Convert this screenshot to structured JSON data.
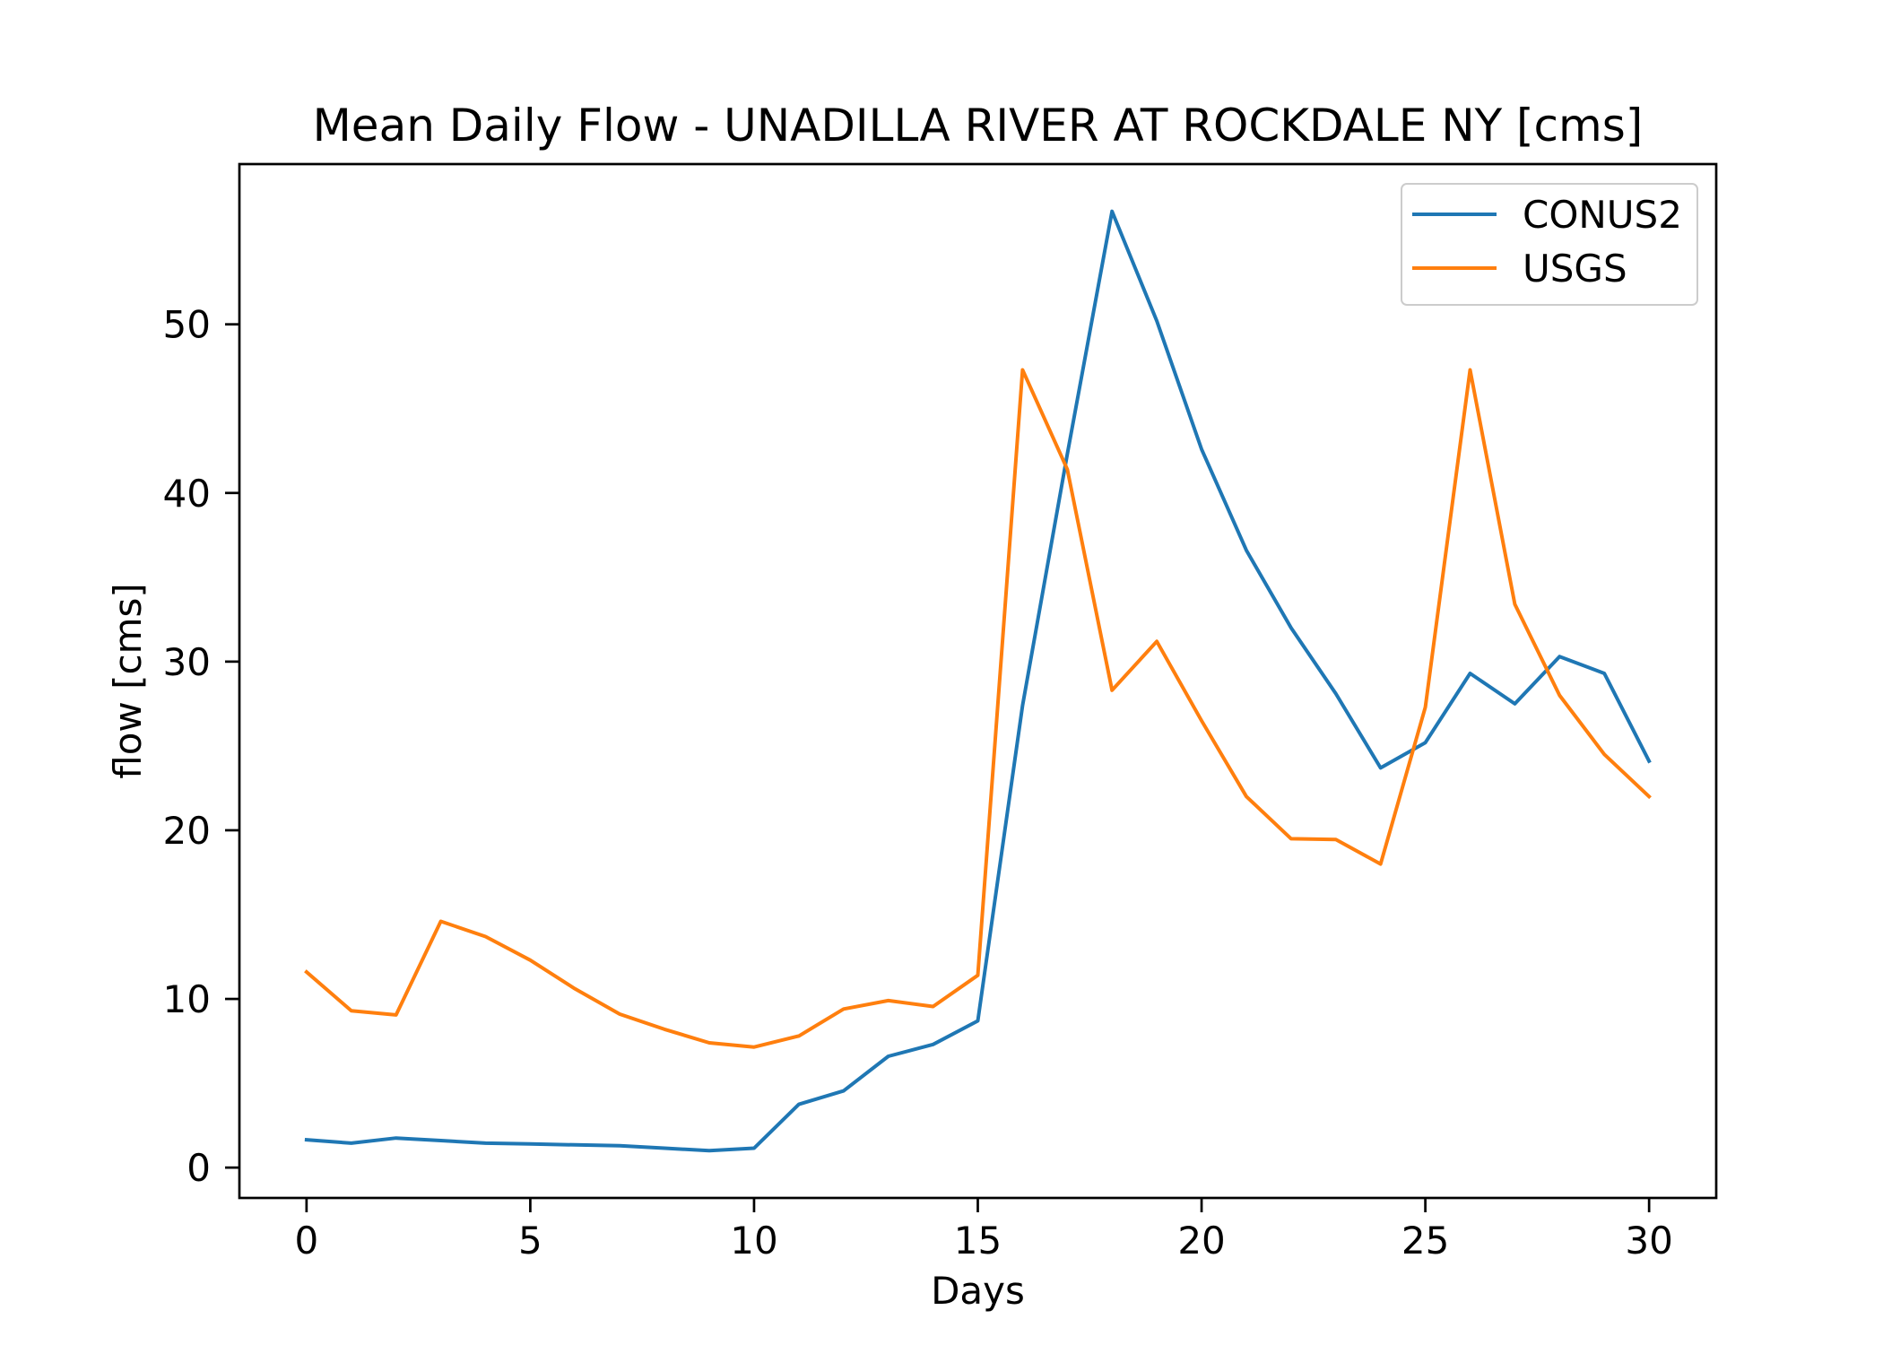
{
  "chart_data": {
    "type": "line",
    "title": "Mean Daily Flow - UNADILLA RIVER AT ROCKDALE NY [cms]",
    "xlabel": "Days",
    "ylabel": "flow [cms]",
    "x": [
      0,
      1,
      2,
      3,
      4,
      5,
      6,
      7,
      8,
      9,
      10,
      11,
      12,
      13,
      14,
      15,
      16,
      17,
      18,
      19,
      20,
      21,
      22,
      23,
      24,
      25,
      26,
      27,
      28,
      29,
      30
    ],
    "series": [
      {
        "name": "CONUS2",
        "color": "#1f77b4",
        "values": [
          1.65,
          1.45,
          1.75,
          1.6,
          1.45,
          1.4,
          1.35,
          1.3,
          1.15,
          1.0,
          1.15,
          3.75,
          4.55,
          6.6,
          7.3,
          8.7,
          27.4,
          42.3,
          56.7,
          50.2,
          42.6,
          36.6,
          32.0,
          28.1,
          23.7,
          25.2,
          29.3,
          27.5,
          30.3,
          29.3,
          24.1
        ]
      },
      {
        "name": "USGS",
        "color": "#ff7f0e",
        "values": [
          11.6,
          9.3,
          9.05,
          14.6,
          13.7,
          12.3,
          10.6,
          9.1,
          8.2,
          7.4,
          7.15,
          7.8,
          9.4,
          9.9,
          9.55,
          11.4,
          47.3,
          41.4,
          28.3,
          31.2,
          26.5,
          22.0,
          19.5,
          19.45,
          18.0,
          27.3,
          47.3,
          33.4,
          28.0,
          24.5,
          22.0
        ]
      }
    ],
    "xlim": [
      -1.5,
      31.5
    ],
    "ylim": [
      -1.8,
      59.5
    ],
    "xticks": [
      0,
      5,
      10,
      15,
      20,
      25,
      30
    ],
    "yticks": [
      0,
      10,
      20,
      30,
      40,
      50
    ],
    "legend_position": "upper right",
    "grid": false
  }
}
